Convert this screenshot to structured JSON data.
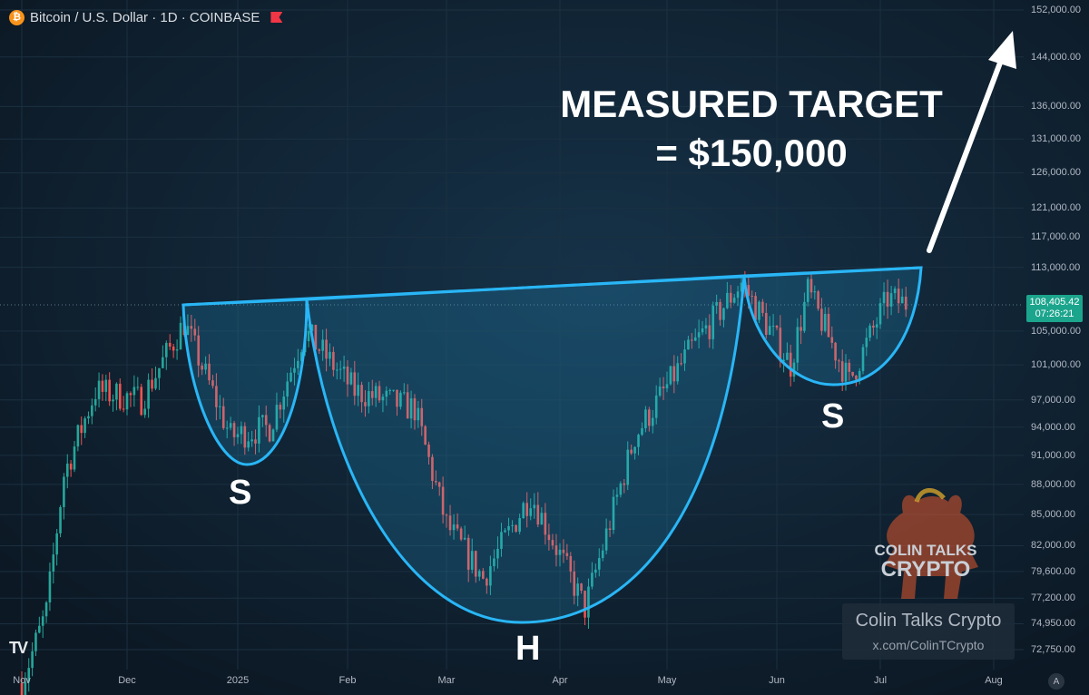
{
  "header": {
    "title": "Bitcoin / U.S. Dollar · 1D · COINBASE",
    "icon": "bitcoin-icon",
    "alert_icon": "flag-icon"
  },
  "price_tag": {
    "price": "108,405.42",
    "countdown": "07:26:21"
  },
  "annotations": {
    "target_line1": "MEASURED TARGET",
    "target_line2": "= $150,000",
    "left_shoulder": "S",
    "head": "H",
    "right_shoulder": "S"
  },
  "branding": {
    "logo_line1": "COLIN TALKS",
    "logo_line2": "CRYPTO",
    "name": "Colin Talks Crypto",
    "link": "x.com/ColinTCrypto",
    "tradingview": "TV"
  },
  "auto_button": "A",
  "colors": {
    "background": "#0f1d2b",
    "up": "#26a69a",
    "down": "#ef5350",
    "pattern": "#29b6f6",
    "arrow": "#ffffff"
  },
  "chart_data": {
    "type": "candlestick",
    "title": "Bitcoin / U.S. Dollar · 1D · COINBASE",
    "y_scale": "log",
    "y_ticks": [
      "152,000.00",
      "144,000.00",
      "136,000.00",
      "131,000.00",
      "126,000.00",
      "121,000.00",
      "117,000.00",
      "113,000.00",
      "108,405.42",
      "105,000.00",
      "101,000.00",
      "97,000.00",
      "94,000.00",
      "91,000.00",
      "88,000.00",
      "85,000.00",
      "82,000.00",
      "79,600.00",
      "77,200.00",
      "74,950.00",
      "72,750.00"
    ],
    "x_ticks": [
      "Nov",
      "Dec",
      "2025",
      "Feb",
      "Mar",
      "Apr",
      "May",
      "Jun",
      "Jul",
      "Aug"
    ],
    "trend_points": [
      [
        "2024-11-01",
        70000
      ],
      [
        "2024-11-08",
        76000
      ],
      [
        "2024-11-13",
        89000
      ],
      [
        "2024-11-22",
        98000
      ],
      [
        "2024-12-05",
        97000
      ],
      [
        "2024-12-17",
        106000
      ],
      [
        "2024-12-30",
        93000
      ],
      [
        "2025-01-10",
        94000
      ],
      [
        "2025-01-20",
        105000
      ],
      [
        "2025-02-03",
        98000
      ],
      [
        "2025-02-20",
        96000
      ],
      [
        "2025-03-01",
        84000
      ],
      [
        "2025-03-11",
        79000
      ],
      [
        "2025-03-24",
        87000
      ],
      [
        "2025-04-08",
        76300
      ],
      [
        "2025-04-22",
        93000
      ],
      [
        "2025-05-08",
        103000
      ],
      [
        "2025-05-22",
        111000
      ],
      [
        "2025-06-05",
        101000
      ],
      [
        "2025-06-10",
        110000
      ],
      [
        "2025-06-22",
        99000
      ],
      [
        "2025-07-03",
        109000
      ],
      [
        "2025-07-08",
        108405.42
      ]
    ],
    "last_price": 108405.42,
    "pattern": "inverse head and shoulders",
    "neckline": [
      [
        "2024-12-17",
        108200
      ],
      [
        "2025-07-10",
        112500
      ]
    ],
    "target": 150000
  }
}
